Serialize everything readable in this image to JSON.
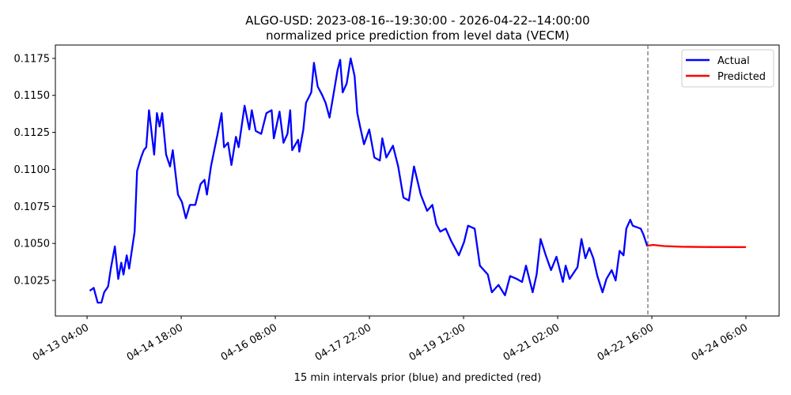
{
  "chart_data": {
    "type": "line",
    "title": "ALGO-USD: 2023-08-16--19:30:00 - 2026-04-22--14:00:00",
    "subtitle": "normalized price prediction from level data (VECM)",
    "xlabel": "15 min intervals prior (blue) and predicted (red)",
    "ylabel": "",
    "x_units": "hours since 04-13 04:00",
    "xlim": [
      -12.8,
      279.4
    ],
    "ylim": [
      0.1001,
      0.1184
    ],
    "grid": false,
    "legend_position": "top-right",
    "x_ticks": [
      {
        "value": 0,
        "label": "04-13 04:00"
      },
      {
        "value": 38,
        "label": "04-14 18:00"
      },
      {
        "value": 76,
        "label": "04-16 08:00"
      },
      {
        "value": 114,
        "label": "04-17 22:00"
      },
      {
        "value": 152,
        "label": "04-19 12:00"
      },
      {
        "value": 190,
        "label": "04-21 02:00"
      },
      {
        "value": 228,
        "label": "04-22 16:00"
      },
      {
        "value": 266,
        "label": "04-24 06:00"
      }
    ],
    "y_ticks": [
      {
        "value": 0.1025,
        "label": "0.1025"
      },
      {
        "value": 0.105,
        "label": "0.1050"
      },
      {
        "value": 0.1075,
        "label": "0.1075"
      },
      {
        "value": 0.11,
        "label": "0.1100"
      },
      {
        "value": 0.1125,
        "label": "0.1125"
      },
      {
        "value": 0.115,
        "label": "0.1150"
      },
      {
        "value": 0.1175,
        "label": "0.1175"
      }
    ],
    "vline_x": 226.4,
    "series": [
      {
        "name": "Actual",
        "color": "#0000ff",
        "x": [
          1.1,
          2.7,
          4.3,
          5.8,
          6.9,
          8.5,
          9.6,
          11.2,
          12.6,
          13.8,
          14.7,
          16.0,
          17.0,
          19.2,
          20.2,
          21.8,
          22.9,
          23.9,
          25.0,
          27.1,
          28.2,
          29.3,
          30.3,
          31.9,
          33.5,
          34.6,
          36.7,
          38.3,
          39.9,
          41.5,
          43.7,
          45.8,
          47.4,
          48.4,
          50.0,
          52.7,
          54.3,
          55.3,
          56.9,
          58.3,
          60.1,
          61.2,
          63.6,
          65.5,
          66.5,
          68.1,
          70.3,
          72.4,
          74.5,
          75.4,
          77.7,
          79.3,
          80.9,
          82.0,
          82.8,
          85.2,
          85.7,
          87.3,
          88.4,
          90.5,
          91.6,
          93.1,
          94.7,
          96.3,
          97.9,
          99.5,
          101.1,
          102.2,
          103.2,
          104.8,
          106.4,
          108.0,
          109.1,
          110.2,
          111.8,
          113.9,
          116.0,
          118.2,
          119.2,
          120.8,
          123.5,
          125.6,
          127.7,
          129.9,
          132.0,
          134.7,
          137.3,
          139.4,
          141.0,
          142.6,
          144.8,
          146.9,
          150.1,
          152.2,
          153.8,
          156.5,
          158.6,
          161.8,
          163.4,
          166.1,
          168.7,
          170.8,
          173.5,
          175.6,
          177.2,
          179.9,
          181.5,
          183.1,
          185.2,
          187.3,
          189.5,
          192.1,
          193.2,
          194.8,
          198.0,
          199.6,
          201.2,
          202.8,
          204.4,
          206.0,
          208.1,
          209.7,
          211.8,
          213.4,
          215.0,
          216.6,
          217.7,
          219.3,
          220.3,
          223.5,
          224.6,
          226.2
        ],
        "y": [
          0.1018,
          0.102,
          0.101,
          0.101,
          0.1017,
          0.1021,
          0.1033,
          0.1048,
          0.1026,
          0.1037,
          0.1029,
          0.1042,
          0.1033,
          0.1058,
          0.1099,
          0.1108,
          0.1113,
          0.1115,
          0.114,
          0.111,
          0.1138,
          0.1129,
          0.1138,
          0.111,
          0.1102,
          0.1113,
          0.1083,
          0.1078,
          0.1067,
          0.1076,
          0.1076,
          0.109,
          0.1093,
          0.1083,
          0.1102,
          0.1124,
          0.1138,
          0.1115,
          0.1118,
          0.1103,
          0.1122,
          0.1115,
          0.1143,
          0.1127,
          0.114,
          0.1126,
          0.1124,
          0.1138,
          0.114,
          0.1121,
          0.1139,
          0.1118,
          0.1124,
          0.114,
          0.1113,
          0.112,
          0.1112,
          0.1127,
          0.1145,
          0.1152,
          0.1172,
          0.1156,
          0.1151,
          0.1145,
          0.1135,
          0.1151,
          0.1167,
          0.1174,
          0.1152,
          0.1158,
          0.1175,
          0.1163,
          0.1138,
          0.1129,
          0.1117,
          0.1127,
          0.1108,
          0.1106,
          0.1121,
          0.1108,
          0.1116,
          0.1102,
          0.1081,
          0.1079,
          0.1102,
          0.1083,
          0.1072,
          0.1076,
          0.1063,
          0.1058,
          0.106,
          0.1052,
          0.1042,
          0.1051,
          0.1062,
          0.106,
          0.1035,
          0.1029,
          0.1017,
          0.1022,
          0.1015,
          0.1028,
          0.1026,
          0.1024,
          0.1035,
          0.1017,
          0.1029,
          0.1053,
          0.1042,
          0.1032,
          0.1041,
          0.1024,
          0.1035,
          0.1026,
          0.1034,
          0.1053,
          0.104,
          0.1047,
          0.104,
          0.1028,
          0.1017,
          0.1026,
          0.1032,
          0.1025,
          0.1045,
          0.1042,
          0.106,
          0.1066,
          0.1062,
          0.106,
          0.1056,
          0.1048
        ]
      },
      {
        "name": "Predicted",
        "color": "#ff0000",
        "x": [
          226.2,
          228.5,
          233,
          240,
          250,
          266
        ],
        "y": [
          0.10485,
          0.1049,
          0.10482,
          0.10478,
          0.10476,
          0.10475
        ]
      }
    ]
  }
}
